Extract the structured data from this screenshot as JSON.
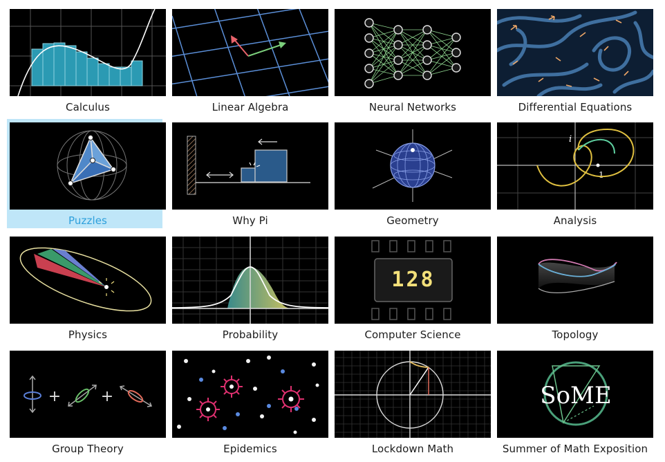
{
  "topics": [
    {
      "label": "Calculus"
    },
    {
      "label": "Linear Algebra"
    },
    {
      "label": "Neural Networks"
    },
    {
      "label": "Differential Equations"
    },
    {
      "label": "Puzzles"
    },
    {
      "label": "Why Pi"
    },
    {
      "label": "Geometry"
    },
    {
      "label": "Analysis"
    },
    {
      "label": "Physics"
    },
    {
      "label": "Probability"
    },
    {
      "label": "Computer Science"
    },
    {
      "label": "Topology"
    },
    {
      "label": "Group Theory"
    },
    {
      "label": "Epidemics"
    },
    {
      "label": "Lockdown Math"
    },
    {
      "label": "Summer of Math Exposition"
    }
  ],
  "selected_topic": "Puzzles",
  "thumbnail_text": {
    "analysis_i": "i",
    "analysis_one": "1",
    "computer_science_display": "128",
    "group_theory_plus": "+",
    "some_logo": "SoME"
  },
  "colors": {
    "selected_bg": "#bfe6f8",
    "selected_text": "#2ea0dc"
  }
}
